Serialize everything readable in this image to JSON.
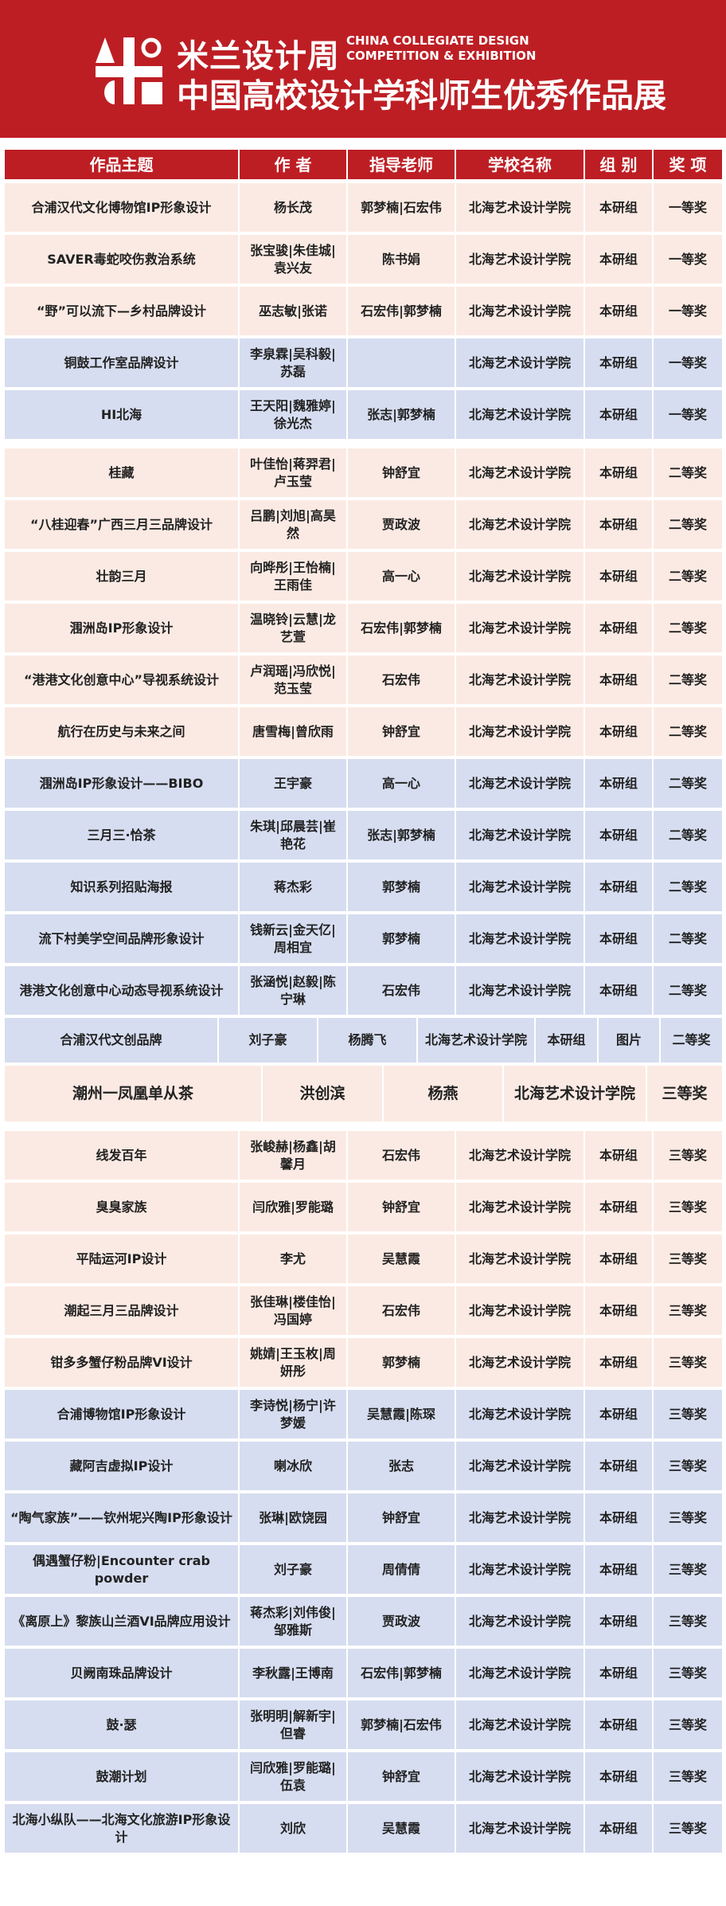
{
  "banner": {
    "title_cn": "米兰设计周",
    "title_en_line1": "CHINA COLLEGIATE DESIGN",
    "title_en_line2": "COMPETITION & EXHIBITION",
    "subtitle": "中国高校设计学科师生优秀作品展",
    "color": "#bd1e24"
  },
  "table": {
    "headers": [
      "作品主题",
      "作 者",
      "指导老师",
      "学校名称",
      "组 别",
      "奖 项"
    ],
    "groups": [
      {
        "rows": [
          {
            "tone": "pink",
            "cells": [
              "合浦汉代文化博物馆IP形象设计",
              "杨长茂",
              "郭梦楠|石宏伟",
              "北海艺术设计学院",
              "本研组",
              "一等奖"
            ]
          },
          {
            "tone": "pink",
            "cells": [
              "SAVER毒蛇咬伤救治系统",
              "张宝骏|朱佳城|袁兴友",
              "陈书娟",
              "北海艺术设计学院",
              "本研组",
              "一等奖"
            ]
          },
          {
            "tone": "pink",
            "cells": [
              "“野”可以流下—乡村品牌设计",
              "巫志敏|张诺",
              "石宏伟|郭梦楠",
              "北海艺术设计学院",
              "本研组",
              "一等奖"
            ]
          },
          {
            "tone": "blue",
            "cells": [
              "铜鼓工作室品牌设计",
              "李泉霖|吴科毅|苏磊",
              "",
              "北海艺术设计学院",
              "本研组",
              "一等奖"
            ]
          },
          {
            "tone": "blue",
            "cells": [
              "HI北海",
              "王天阳|魏雅婷|徐光杰",
              "张志|郭梦楠",
              "北海艺术设计学院",
              "本研组",
              "一等奖"
            ]
          }
        ]
      },
      {
        "rows": [
          {
            "tone": "pink",
            "cells": [
              "桂藏",
              "叶佳怡|蒋羿君|卢玉莹",
              "钟舒宜",
              "北海艺术设计学院",
              "本研组",
              "二等奖"
            ]
          },
          {
            "tone": "pink",
            "cells": [
              "“八桂迎春”广西三月三品牌设计",
              "吕鹏|刘旭|高昊然",
              "贾政波",
              "北海艺术设计学院",
              "本研组",
              "二等奖"
            ]
          },
          {
            "tone": "pink",
            "cells": [
              "壮韵三月",
              "向晔彤|王怡楠|王雨佳",
              "高一心",
              "北海艺术设计学院",
              "本研组",
              "二等奖"
            ]
          },
          {
            "tone": "pink",
            "cells": [
              "涠洲岛IP形象设计",
              "温晓铃|云慧|龙艺萱",
              "石宏伟|郭梦楠",
              "北海艺术设计学院",
              "本研组",
              "二等奖"
            ]
          },
          {
            "tone": "pink",
            "cells": [
              "“港港文化创意中心”导视系统设计",
              "卢润瑶|冯欣悦|范玉莹",
              "石宏伟",
              "北海艺术设计学院",
              "本研组",
              "二等奖"
            ]
          },
          {
            "tone": "pink",
            "cells": [
              "航行在历史与未来之间",
              "唐雪梅|曾欣雨",
              "钟舒宜",
              "北海艺术设计学院",
              "本研组",
              "二等奖"
            ]
          },
          {
            "tone": "blue",
            "cells": [
              "涠洲岛IP形象设计——BIBO",
              "王宇豪",
              "高一心",
              "北海艺术设计学院",
              "本研组",
              "二等奖"
            ]
          },
          {
            "tone": "blue",
            "cells": [
              "三月三·恰茶",
              "朱琪|邱晨芸|崔艳花",
              "张志|郭梦楠",
              "北海艺术设计学院",
              "本研组",
              "二等奖"
            ]
          },
          {
            "tone": "blue",
            "cells": [
              "知识系列招贴海报",
              "蒋杰彩",
              "郭梦楠",
              "北海艺术设计学院",
              "本研组",
              "二等奖"
            ]
          },
          {
            "tone": "blue",
            "cells": [
              "流下村美学空间品牌形象设计",
              "钱新云|金天亿|周相宜",
              "郭梦楠",
              "北海艺术设计学院",
              "本研组",
              "二等奖"
            ]
          },
          {
            "tone": "blue",
            "cells": [
              "港港文化创意中心动态导视系统设计",
              "张涵悦|赵毅|陈宁琳",
              "石宏伟",
              "北海艺术设计学院",
              "本研组",
              "二等奖"
            ]
          },
          {
            "tone": "blue",
            "layout": "seven",
            "cells": [
              "合浦汉代文创品牌",
              "刘子豪",
              "杨腾飞",
              "北海艺术设计学院",
              "本研组",
              "图片",
              "二等奖"
            ]
          },
          {
            "tone": "pink",
            "layout": "five",
            "cells": [
              "潮州一凤凰单从茶",
              "洪创滨",
              "杨燕",
              "北海艺术设计学院",
              "三等奖"
            ]
          }
        ]
      },
      {
        "rows": [
          {
            "tone": "pink",
            "cells": [
              "线发百年",
              "张峻赫|杨鑫|胡馨月",
              "石宏伟",
              "北海艺术设计学院",
              "本研组",
              "三等奖"
            ]
          },
          {
            "tone": "pink",
            "cells": [
              "臭臭家族",
              "闫欣雅|罗能璐",
              "钟舒宜",
              "北海艺术设计学院",
              "本研组",
              "三等奖"
            ]
          },
          {
            "tone": "pink",
            "cells": [
              "平陆运河IP设计",
              "李尤",
              "吴慧霞",
              "北海艺术设计学院",
              "本研组",
              "三等奖"
            ]
          },
          {
            "tone": "pink",
            "cells": [
              "潮起三月三品牌设计",
              "张佳琳|楼佳怡|冯国婷",
              "石宏伟",
              "北海艺术设计学院",
              "本研组",
              "三等奖"
            ]
          },
          {
            "tone": "pink",
            "cells": [
              "钳多多蟹仔粉品牌VI设计",
              "姚婧|王玉枚|周妍彤",
              "郭梦楠",
              "北海艺术设计学院",
              "本研组",
              "三等奖"
            ]
          },
          {
            "tone": "blue",
            "cells": [
              "合浦博物馆IP形象设计",
              "李诗悦|杨宁|许梦媛",
              "吴慧霞|陈琛",
              "北海艺术设计学院",
              "本研组",
              "三等奖"
            ]
          },
          {
            "tone": "blue",
            "cells": [
              "藏阿吉虚拟IP设计",
              "喇冰欣",
              "张志",
              "北海艺术设计学院",
              "本研组",
              "三等奖"
            ]
          },
          {
            "tone": "blue",
            "cells": [
              "“陶气家族”——钦州坭兴陶IP形象设计",
              "张琳|欧饶园",
              "钟舒宜",
              "北海艺术设计学院",
              "本研组",
              "三等奖"
            ]
          },
          {
            "tone": "blue",
            "cells": [
              "偶遇蟹仔粉|Encounter crab powder",
              "刘子豪",
              "周倩倩",
              "北海艺术设计学院",
              "本研组",
              "三等奖"
            ]
          },
          {
            "tone": "blue",
            "cells": [
              "《离原上》黎族山兰酒VI品牌应用设计",
              "蒋杰彩|刘伟俊|邹雅斯",
              "贾政波",
              "北海艺术设计学院",
              "本研组",
              "三等奖"
            ]
          },
          {
            "tone": "blue",
            "cells": [
              "贝阙南珠品牌设计",
              "李秋露|王博南",
              "石宏伟|郭梦楠",
              "北海艺术设计学院",
              "本研组",
              "三等奖"
            ]
          },
          {
            "tone": "blue",
            "cells": [
              "鼓·瑟",
              "张明明|解新宇|但睿",
              "郭梦楠|石宏伟",
              "北海艺术设计学院",
              "本研组",
              "三等奖"
            ]
          },
          {
            "tone": "blue",
            "cells": [
              "鼓潮计划",
              "闫欣雅|罗能璐|伍袁",
              "钟舒宜",
              "北海艺术设计学院",
              "本研组",
              "三等奖"
            ]
          },
          {
            "tone": "blue",
            "cells": [
              "北海小纵队——北海文化旅游IP形象设计",
              "刘欣",
              "吴慧霞",
              "北海艺术设计学院",
              "本研组",
              "三等奖"
            ]
          }
        ]
      }
    ]
  }
}
